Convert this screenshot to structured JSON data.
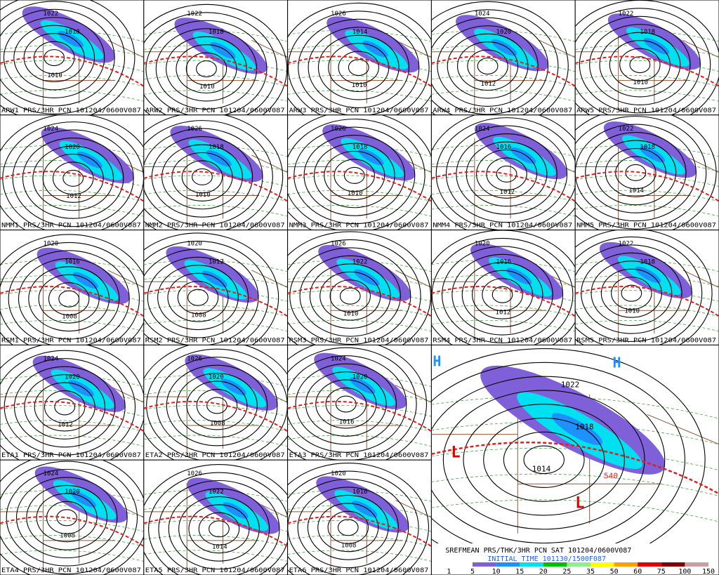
{
  "panels": [
    {
      "caption": "ARW1 PRS/3HR PCN 101204/0600V087",
      "labels": [
        "1022",
        "1018",
        "1010"
      ]
    },
    {
      "caption": "ARW2 PRS/3HR PCN 101204/0600V087",
      "labels": [
        "1022",
        "1018",
        "1010"
      ]
    },
    {
      "caption": "ARW3 PRS/3HR PCN 101204/0600V087",
      "labels": [
        "1026",
        "1014",
        "1010"
      ]
    },
    {
      "caption": "ARW4 PRS/3HR PCN 101204/0600V087",
      "labels": [
        "1024",
        "1020",
        "1012"
      ]
    },
    {
      "caption": "ARW5 PRS/3HR PCN 101204/0600V087",
      "labels": [
        "1022",
        "1018",
        "1010"
      ]
    },
    {
      "caption": "NMM1 PRS/3HR PCN 101204/0600V087",
      "labels": [
        "1024",
        "1020",
        "1012"
      ]
    },
    {
      "caption": "NMM2 PRS/3HR PCN 101204/0600V087",
      "labels": [
        "1026",
        "1018",
        "1010"
      ]
    },
    {
      "caption": "NMM3 PRS/3HR PCN 101204/0600V087",
      "labels": [
        "1026",
        "1018",
        "1010"
      ]
    },
    {
      "caption": "NMM4 PRS/3HR PCN 101204/0600V087",
      "labels": [
        "1024",
        "1016",
        "1012"
      ]
    },
    {
      "caption": "NMM5 PRS/3HR PCN 101204/0600V087",
      "labels": [
        "1022",
        "1018",
        "1014"
      ]
    },
    {
      "caption": "RSM1 PRS/3HR PCN 101204/0600V087",
      "labels": [
        "1020",
        "1016",
        "1008"
      ]
    },
    {
      "caption": "RSM2 PRS/3HR PCN 101204/0600V087",
      "labels": [
        "1020",
        "1012",
        "1008"
      ]
    },
    {
      "caption": "RSM3 PRS/3HR PCN 101204/0600V087",
      "labels": [
        "1026",
        "1022",
        "1010"
      ]
    },
    {
      "caption": "RSM4 PRS/3HR PCN 101204/0600V087",
      "labels": [
        "1020",
        "1016",
        "1012"
      ]
    },
    {
      "caption": "RSM5 PRS/3HR PCN 101204/0600V087",
      "labels": [
        "1022",
        "1018",
        "1010"
      ]
    },
    {
      "caption": "ETA1 PRS/3HR PCN 101204/0600V087",
      "labels": [
        "1024",
        "1020",
        "1012"
      ]
    },
    {
      "caption": "ETA2 PRS/3HR PCN 101204/0600V087",
      "labels": [
        "1026",
        "1020",
        "1008"
      ]
    },
    {
      "caption": "ETA3 PRS/3HR PCN 101204/0600V087",
      "labels": [
        "1024",
        "1020",
        "1016"
      ]
    },
    {
      "caption": "ETA4 PRS/3HR PCN 101204/0600V087",
      "labels": [
        "1024",
        "1020",
        "1008"
      ]
    },
    {
      "caption": "ETA5 PRS/3HR PCN 101204/0600V087",
      "labels": [
        "1026",
        "1022",
        "1014"
      ]
    },
    {
      "caption": "ETA6 PRS/3HR PCN 101204/0600V087",
      "labels": [
        "1020",
        "1016",
        "1008"
      ]
    }
  ],
  "mean_panel": {
    "caption": "SREFMEAN PRS/THK/3HR PCN SAT 101204/0600V087",
    "initial": "INITIAL TIME  101130/1500F087",
    "labels": [
      "1022",
      "1018",
      "1014"
    ],
    "thickness_label": "540",
    "highs": [
      "H",
      "H"
    ],
    "lows": [
      "L",
      "L"
    ]
  },
  "legend": {
    "values": [
      "1",
      "5",
      "10",
      "15",
      "20",
      "25",
      "35",
      "50",
      "60",
      "75",
      "100",
      "150"
    ],
    "colors": [
      "#ffffff",
      "#8060d8",
      "#1e90ff",
      "#00e0f0",
      "#00c000",
      "#90ee90",
      "#ffff00",
      "#ffa000",
      "#e00000",
      "#800000",
      "#c8a0a0"
    ]
  }
}
